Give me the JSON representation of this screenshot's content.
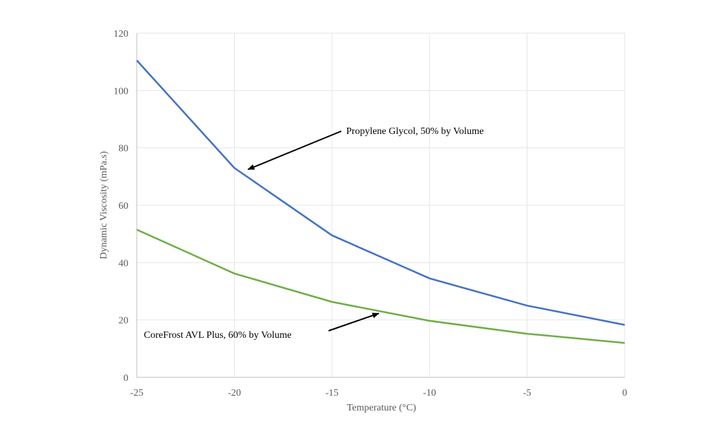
{
  "chart_data": {
    "type": "line",
    "title": "",
    "xlabel": "Temperature (°C)",
    "ylabel": "Dynamic Viscosity (mPa.s)",
    "xlim": [
      -25,
      0
    ],
    "ylim": [
      0,
      120
    ],
    "x_ticks": [
      -25,
      -20,
      -15,
      -10,
      -5,
      0
    ],
    "y_ticks": [
      0,
      20,
      40,
      60,
      80,
      100,
      120
    ],
    "grid": true,
    "legend": "none",
    "series": [
      {
        "name": "Propylene Glycol, 50% by Volume",
        "color": "#4472c4",
        "x": [
          -25,
          -20,
          -15,
          -10,
          -5,
          0
        ],
        "y": [
          110.5,
          73,
          49.5,
          34.5,
          25,
          18.3
        ]
      },
      {
        "name": "CoreFrost AVL Plus, 60% by Volume",
        "color": "#70ad47",
        "x": [
          -25,
          -20,
          -15,
          -10,
          -5,
          0
        ],
        "y": [
          51.5,
          36.2,
          26.3,
          19.7,
          15.2,
          12
        ]
      }
    ],
    "annotations": [
      {
        "text": "Propylene Glycol, 50% by Volume",
        "series_index": 0,
        "point_x": -19.3,
        "point_y": 72.5
      },
      {
        "text": "CoreFrost AVL Plus, 60% by Volume",
        "series_index": 1,
        "point_x": -12.6,
        "point_y": 22.3
      }
    ]
  }
}
